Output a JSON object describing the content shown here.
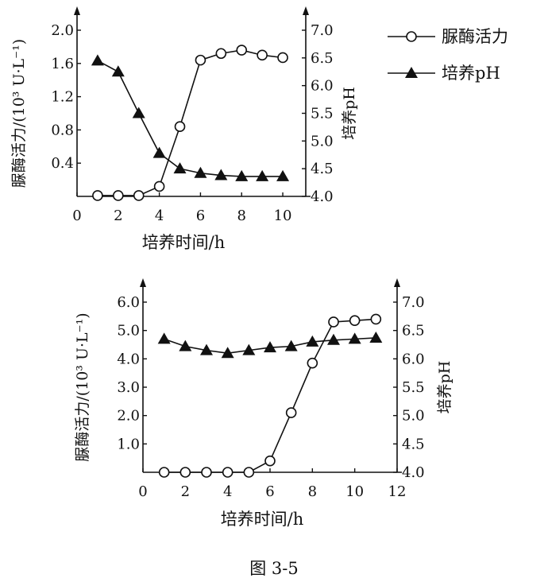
{
  "caption": "图 3-5",
  "legend": {
    "series1_label": "脲酶活力",
    "series2_label": "培养pH",
    "placement": "top-right"
  },
  "chart_data": [
    {
      "type": "line",
      "xlabel": "培养时间/h",
      "ylabel": "脲酶活力/(10³ U·L⁻¹)",
      "y2label": "培养pH",
      "xlim": [
        0,
        10.5
      ],
      "xticks": [
        0,
        2,
        4,
        6,
        8,
        10
      ],
      "xtick_labels": [
        "0",
        "2",
        "4",
        "6",
        "8",
        "10"
      ],
      "ylim": [
        0,
        2.0
      ],
      "yticks": [
        0.4,
        0.8,
        1.2,
        1.6,
        2.0
      ],
      "ytick_labels": [
        "0.4",
        "0.8",
        "1.2",
        "1.6",
        "2.0"
      ],
      "y2lim": [
        4.0,
        7.0
      ],
      "y2ticks": [
        4.0,
        4.5,
        5.0,
        5.5,
        6.0,
        6.5,
        7.0
      ],
      "y2tick_labels": [
        "4.0",
        "4.5",
        "5.0",
        "5.5",
        "6.0",
        "6.5",
        "7.0"
      ],
      "grid": false,
      "series": [
        {
          "name": "脲酶活力",
          "axis": "left",
          "marker": "circle-open",
          "x": [
            1,
            2,
            3,
            4,
            5,
            6,
            7,
            8,
            9,
            10
          ],
          "y": [
            0.01,
            0.01,
            0.01,
            0.12,
            0.84,
            1.64,
            1.72,
            1.76,
            1.7,
            1.67
          ]
        },
        {
          "name": "培养pH",
          "axis": "right",
          "marker": "triangle-filled",
          "x": [
            1,
            2,
            3,
            4,
            5,
            6,
            7,
            8,
            9,
            10
          ],
          "y": [
            6.45,
            6.25,
            5.5,
            4.78,
            4.5,
            4.42,
            4.38,
            4.36,
            4.36,
            4.36
          ]
        }
      ]
    },
    {
      "type": "line",
      "xlabel": "培养时间/h",
      "ylabel": "脲酶活力/(10³ U·L⁻¹)",
      "y2label": "培养pH",
      "xlim": [
        0,
        12
      ],
      "xticks": [
        0,
        2,
        4,
        6,
        8,
        10,
        12
      ],
      "xtick_labels": [
        "0",
        "2",
        "4",
        "6",
        "8",
        "10",
        "12"
      ],
      "ylim": [
        0,
        6.0
      ],
      "yticks": [
        1.0,
        2.0,
        3.0,
        4.0,
        5.0,
        6.0
      ],
      "ytick_labels": [
        "1.0",
        "2.0",
        "3.0",
        "4.0",
        "5.0",
        "6.0"
      ],
      "y2lim": [
        4.0,
        7.0
      ],
      "y2ticks": [
        4.0,
        4.5,
        5.0,
        5.5,
        6.0,
        6.5,
        7.0
      ],
      "y2tick_labels": [
        "4.0",
        "4.5",
        "5.0",
        "5.5",
        "6.0",
        "6.5",
        "7.0"
      ],
      "grid": false,
      "series": [
        {
          "name": "脲酶活力",
          "axis": "left",
          "marker": "circle-open",
          "x": [
            1,
            2,
            3,
            4,
            5,
            6,
            7,
            8,
            9,
            10,
            11
          ],
          "y": [
            0,
            0,
            0,
            0,
            0,
            0.4,
            2.1,
            3.85,
            5.3,
            5.35,
            5.4
          ]
        },
        {
          "name": "培养pH",
          "axis": "right",
          "marker": "triangle-filled",
          "x": [
            1,
            2,
            3,
            4,
            5,
            6,
            7,
            8,
            9,
            10,
            11
          ],
          "y": [
            6.35,
            6.22,
            6.15,
            6.1,
            6.15,
            6.2,
            6.22,
            6.3,
            6.33,
            6.35,
            6.37
          ]
        }
      ]
    }
  ]
}
